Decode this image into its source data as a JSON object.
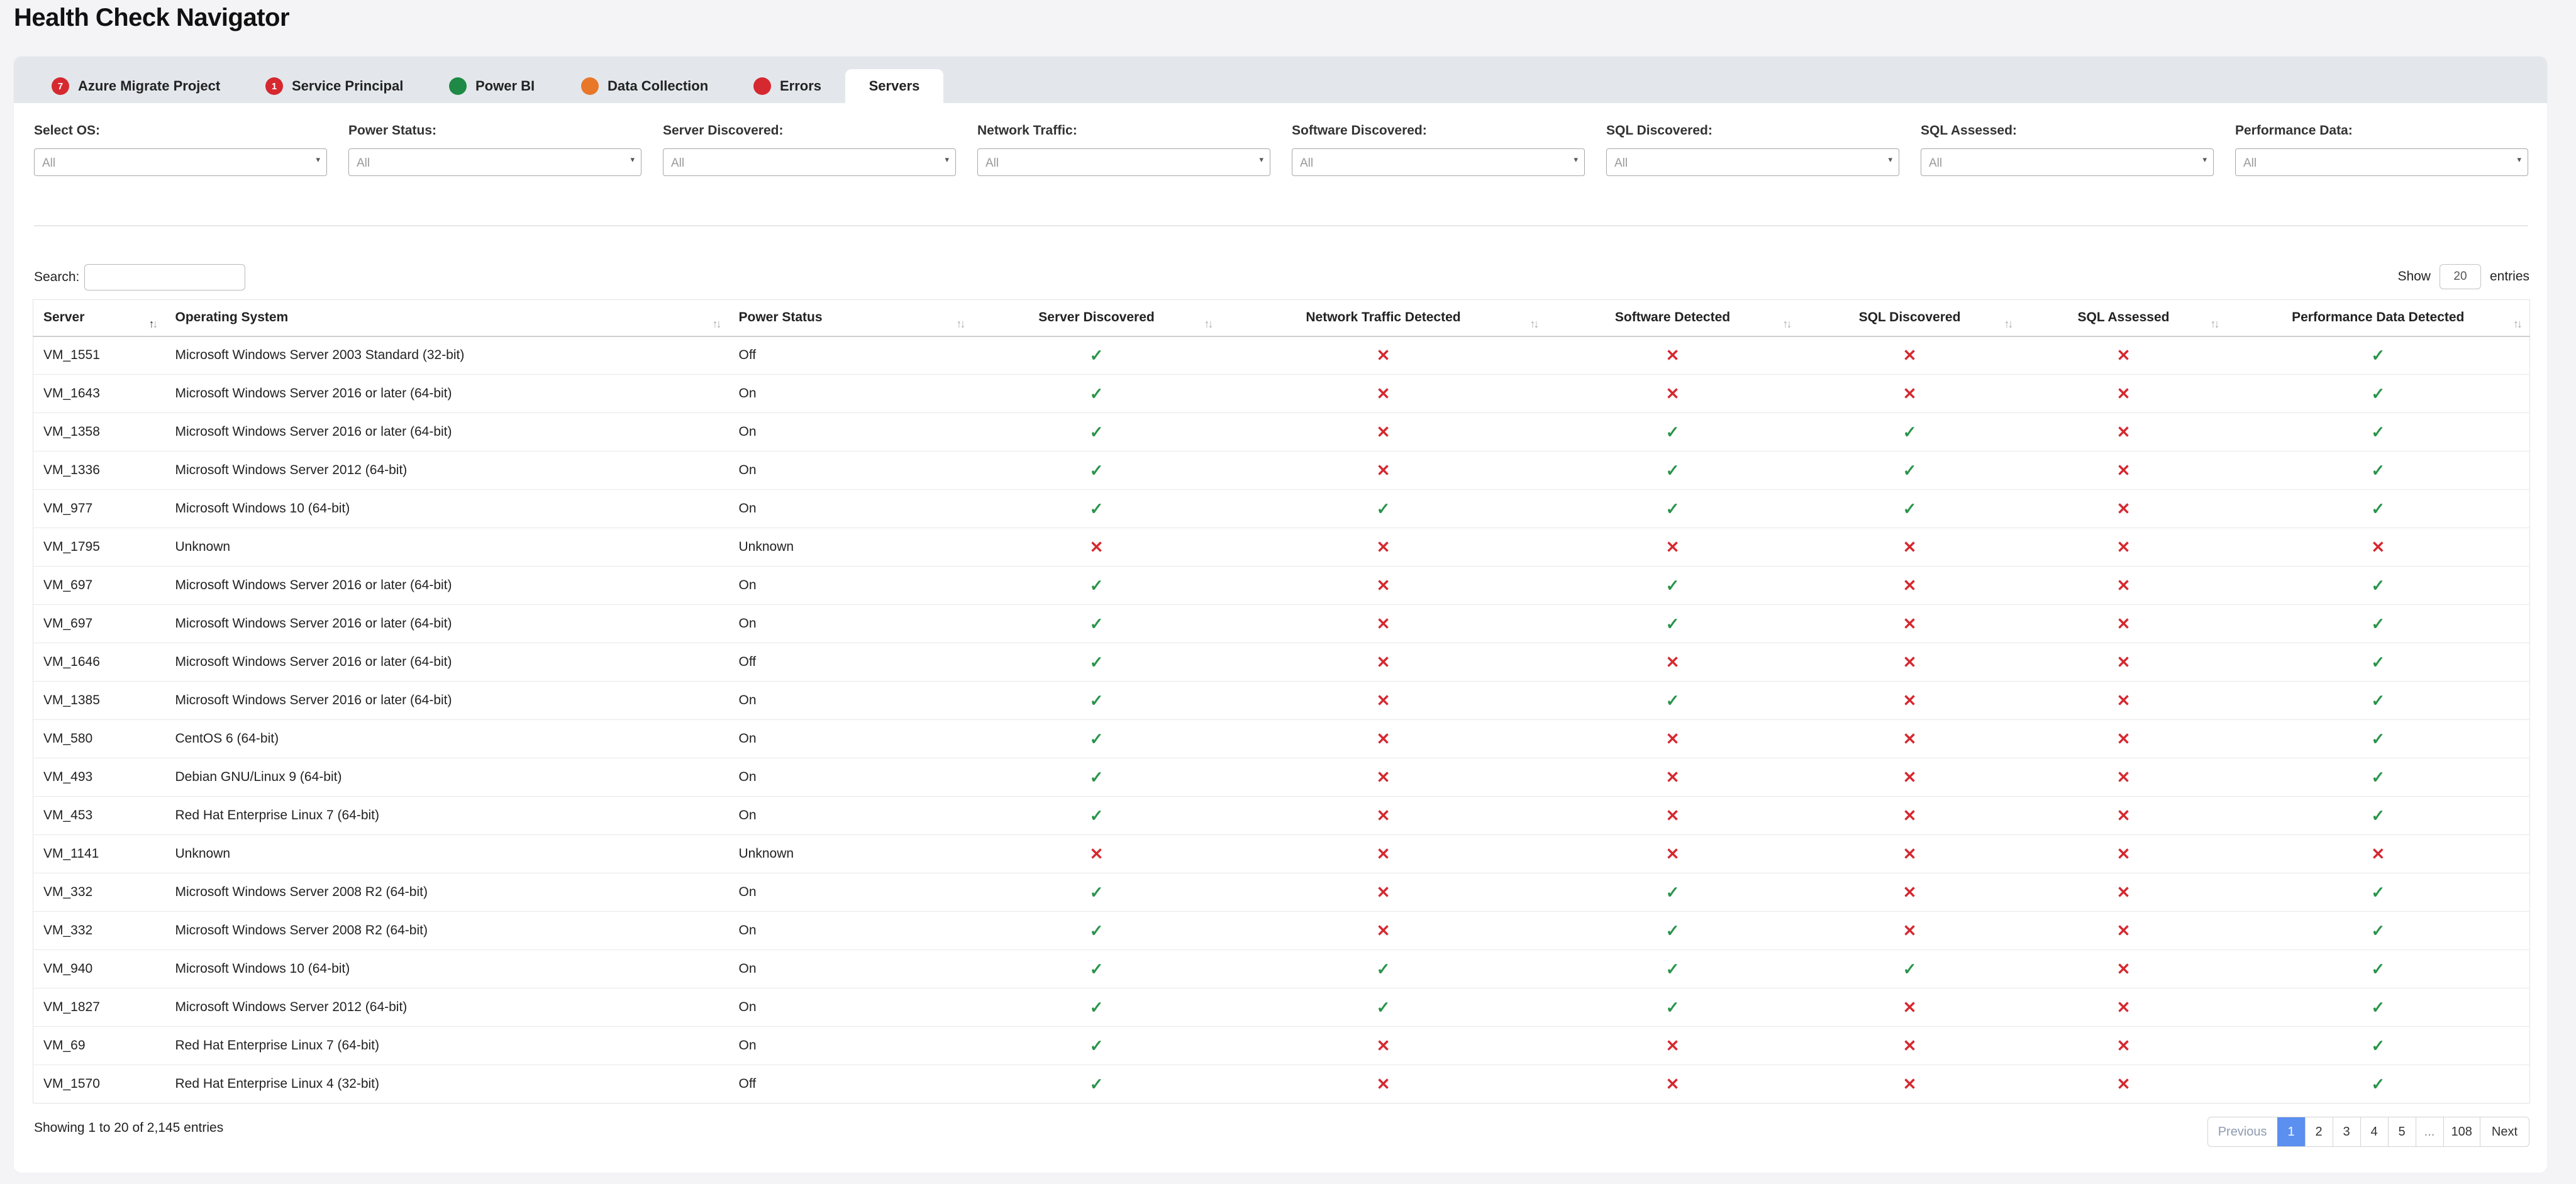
{
  "app": {
    "title": "Health Check Navigator"
  },
  "tabs": [
    {
      "label": "Azure Migrate Project",
      "badge": "7",
      "color": "#d6282f",
      "icon": "badge-count-icon"
    },
    {
      "label": "Service Principal",
      "badge": "1",
      "color": "#d6282f",
      "icon": "badge-count-icon"
    },
    {
      "label": "Power BI",
      "badge": "",
      "color": "#1e8a45",
      "icon": "status-dot-icon"
    },
    {
      "label": "Data Collection",
      "badge": "",
      "color": "#e8772a",
      "icon": "status-dot-icon"
    },
    {
      "label": "Errors",
      "badge": "",
      "color": "#d6282f",
      "icon": "status-dot-icon"
    },
    {
      "label": "Servers",
      "badge": "",
      "color": "",
      "active": true
    }
  ],
  "filters": [
    {
      "label": "Select OS:",
      "value": "All"
    },
    {
      "label": "Power Status:",
      "value": "All"
    },
    {
      "label": "Server Discovered:",
      "value": "All"
    },
    {
      "label": "Network Traffic:",
      "value": "All"
    },
    {
      "label": "Software Discovered:",
      "value": "All"
    },
    {
      "label": "SQL Discovered:",
      "value": "All"
    },
    {
      "label": "SQL Assessed:",
      "value": "All"
    },
    {
      "label": "Performance Data:",
      "value": "All"
    }
  ],
  "search": {
    "label": "Search:",
    "value": ""
  },
  "length": {
    "prefix": "Show",
    "value": "20",
    "suffix": "entries"
  },
  "table": {
    "columns": [
      "Server",
      "Operating System",
      "Power Status",
      "Server Discovered",
      "Network Traffic Detected",
      "Software Detected",
      "SQL Discovered",
      "SQL Assessed",
      "Performance Data Detected"
    ],
    "rows": [
      [
        "VM_1551",
        "Microsoft Windows Server 2003 Standard (32-bit)",
        "Off",
        true,
        false,
        false,
        false,
        false,
        true
      ],
      [
        "VM_1643",
        "Microsoft Windows Server 2016 or later (64-bit)",
        "On",
        true,
        false,
        false,
        false,
        false,
        true
      ],
      [
        "VM_1358",
        "Microsoft Windows Server 2016 or later (64-bit)",
        "On",
        true,
        false,
        true,
        true,
        false,
        true
      ],
      [
        "VM_1336",
        "Microsoft Windows Server 2012 (64-bit)",
        "On",
        true,
        false,
        true,
        true,
        false,
        true
      ],
      [
        "VM_977",
        "Microsoft Windows 10 (64-bit)",
        "On",
        true,
        true,
        true,
        true,
        false,
        true
      ],
      [
        "VM_1795",
        "Unknown",
        "Unknown",
        false,
        false,
        false,
        false,
        false,
        false
      ],
      [
        "VM_697",
        "Microsoft Windows Server 2016 or later (64-bit)",
        "On",
        true,
        false,
        true,
        false,
        false,
        true
      ],
      [
        "VM_697",
        "Microsoft Windows Server 2016 or later (64-bit)",
        "On",
        true,
        false,
        true,
        false,
        false,
        true
      ],
      [
        "VM_1646",
        "Microsoft Windows Server 2016 or later (64-bit)",
        "Off",
        true,
        false,
        false,
        false,
        false,
        true
      ],
      [
        "VM_1385",
        "Microsoft Windows Server 2016 or later (64-bit)",
        "On",
        true,
        false,
        true,
        false,
        false,
        true
      ],
      [
        "VM_580",
        "CentOS 6 (64-bit)",
        "On",
        true,
        false,
        false,
        false,
        false,
        true
      ],
      [
        "VM_493",
        "Debian GNU/Linux 9 (64-bit)",
        "On",
        true,
        false,
        false,
        false,
        false,
        true
      ],
      [
        "VM_453",
        "Red Hat Enterprise Linux 7 (64-bit)",
        "On",
        true,
        false,
        false,
        false,
        false,
        true
      ],
      [
        "VM_1141",
        "Unknown",
        "Unknown",
        false,
        false,
        false,
        false,
        false,
        false
      ],
      [
        "VM_332",
        "Microsoft Windows Server 2008 R2 (64-bit)",
        "On",
        true,
        false,
        true,
        false,
        false,
        true
      ],
      [
        "VM_332",
        "Microsoft Windows Server 2008 R2 (64-bit)",
        "On",
        true,
        false,
        true,
        false,
        false,
        true
      ],
      [
        "VM_940",
        "Microsoft Windows 10 (64-bit)",
        "On",
        true,
        true,
        true,
        true,
        false,
        true
      ],
      [
        "VM_1827",
        "Microsoft Windows Server 2012 (64-bit)",
        "On",
        true,
        true,
        true,
        false,
        false,
        true
      ],
      [
        "VM_69",
        "Red Hat Enterprise Linux 7 (64-bit)",
        "On",
        true,
        false,
        false,
        false,
        false,
        true
      ],
      [
        "VM_1570",
        "Red Hat Enterprise Linux 4 (32-bit)",
        "Off",
        true,
        false,
        false,
        false,
        false,
        true
      ]
    ]
  },
  "footer": {
    "info": "Showing 1 to 20 of 2,145 entries",
    "pages": [
      "Previous",
      "1",
      "2",
      "3",
      "4",
      "5",
      "...",
      "108",
      "Next"
    ],
    "current_page": "1"
  },
  "colors": {
    "ok": "#27944a",
    "no": "#d6282f",
    "accent": "#5b8ff0"
  }
}
